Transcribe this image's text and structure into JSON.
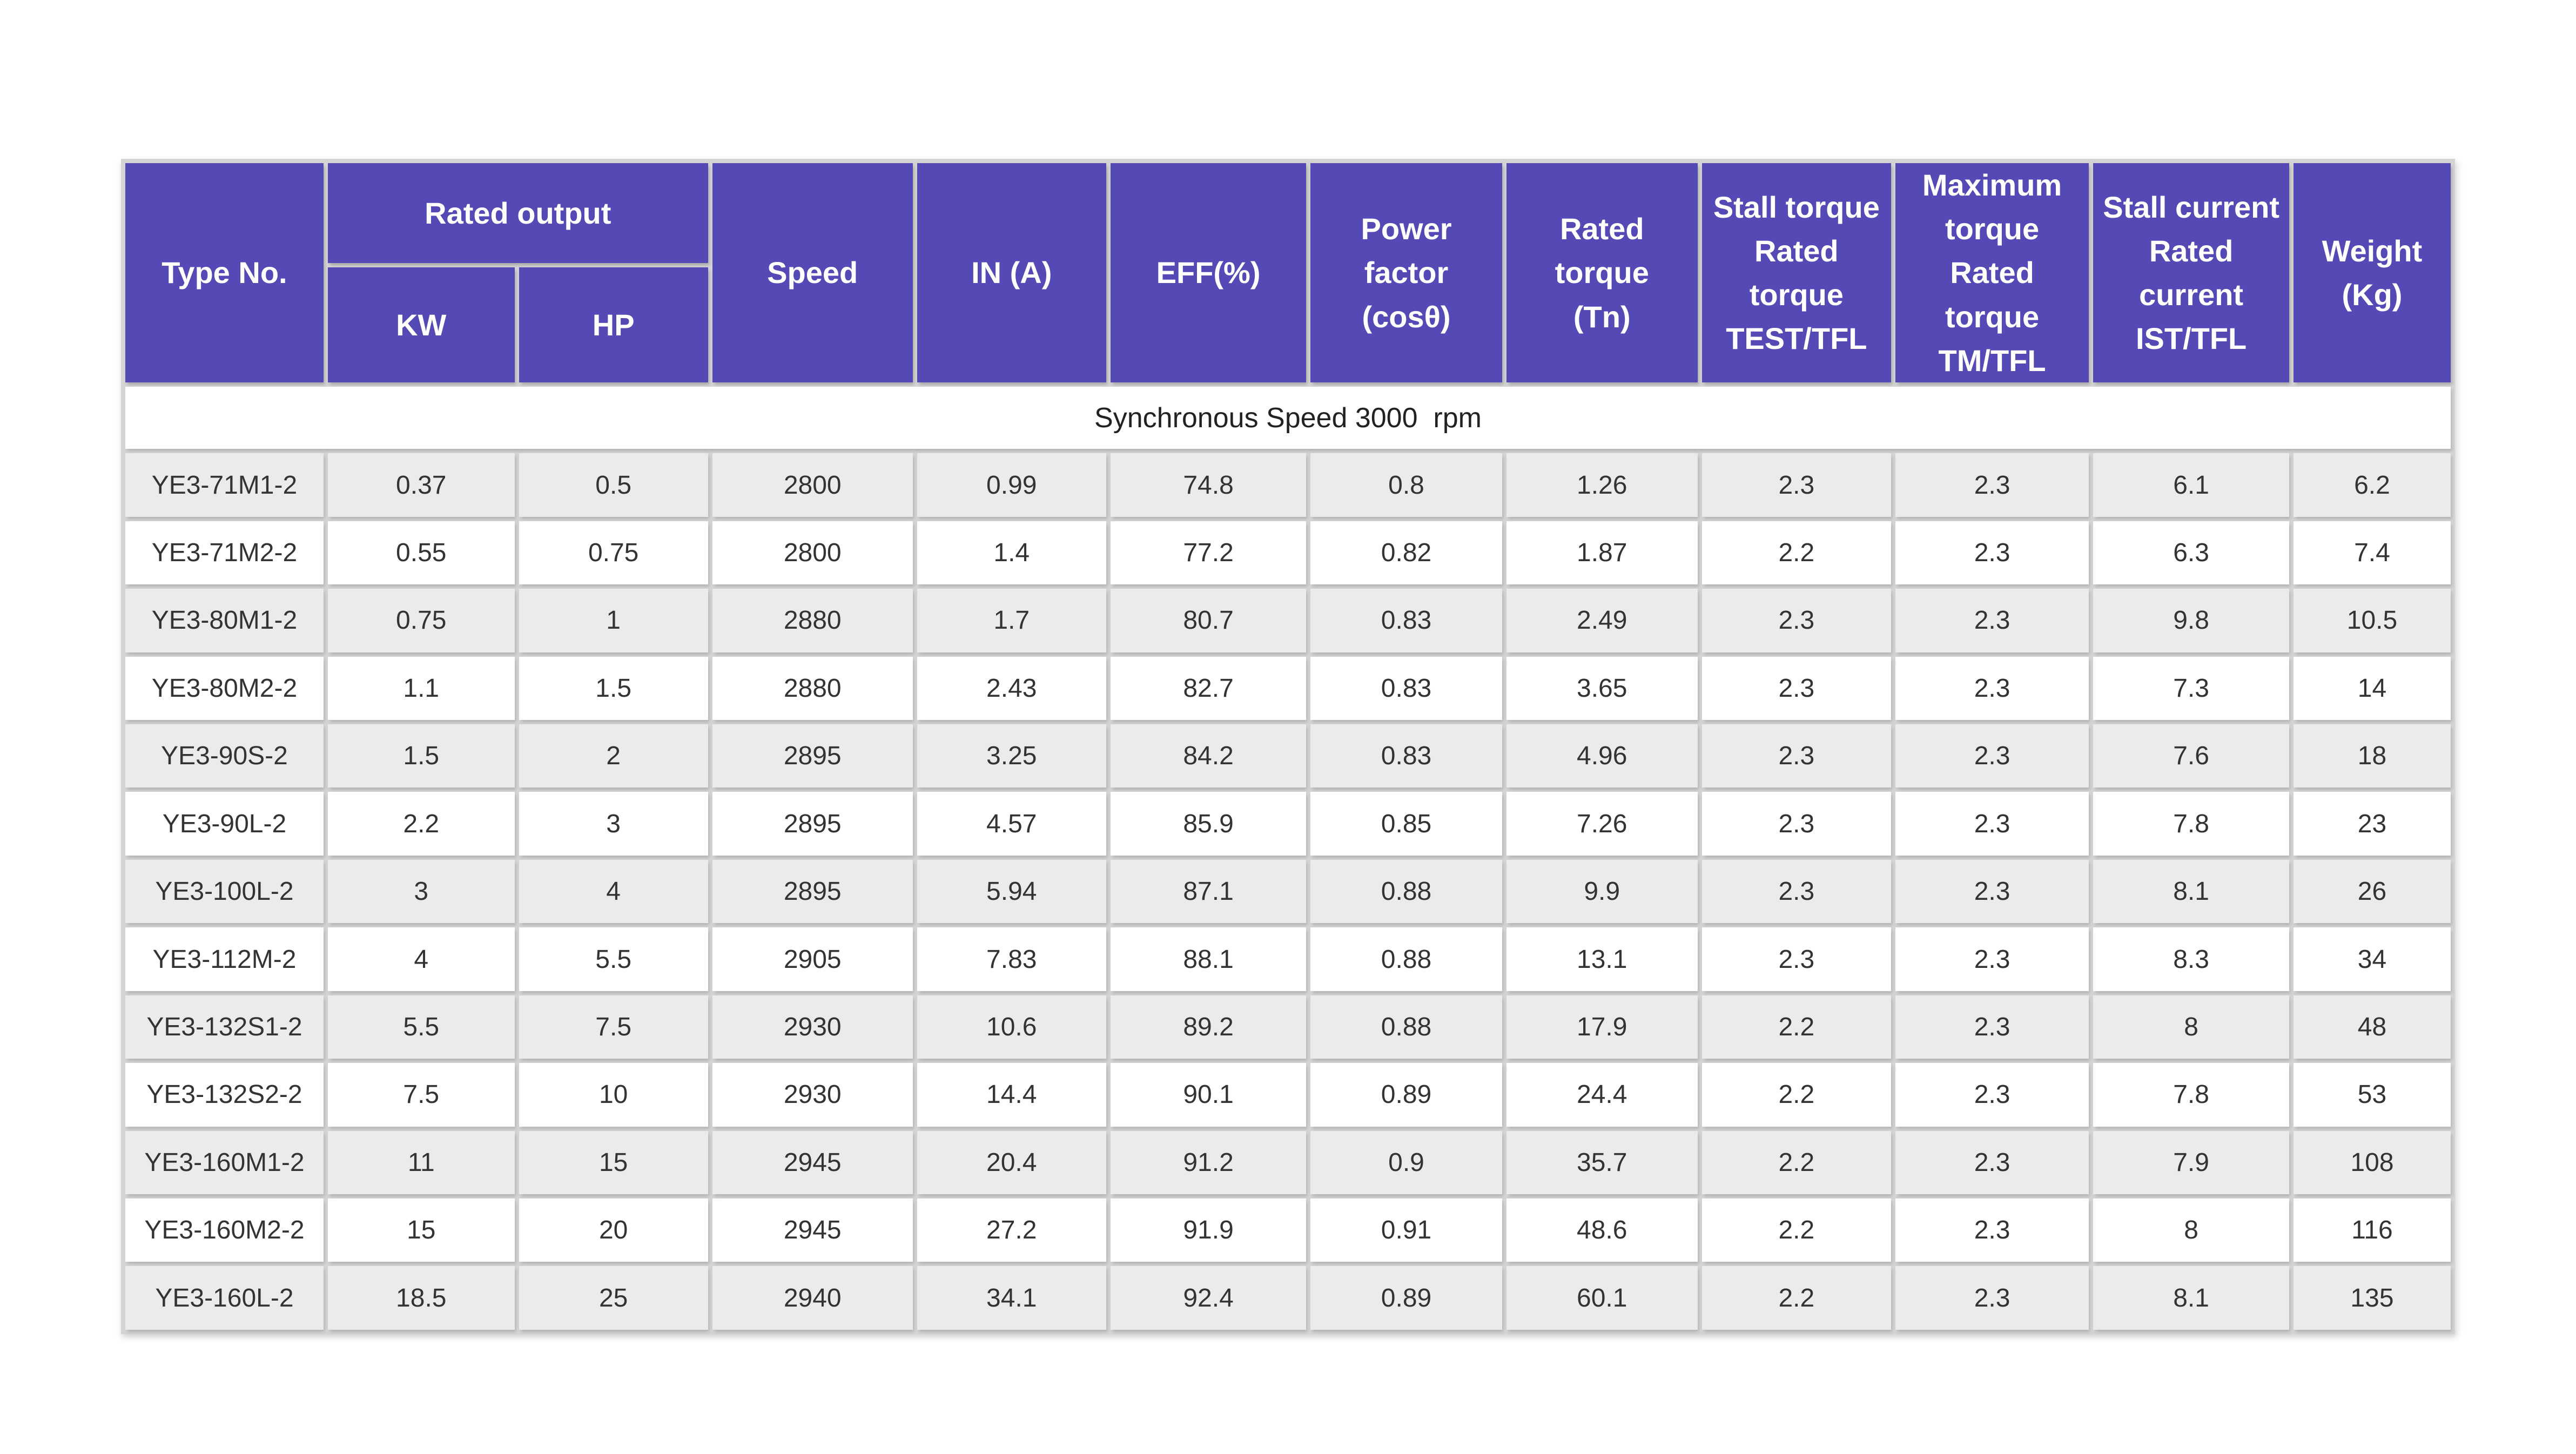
{
  "page": {
    "background_color": "#ffffff"
  },
  "table": {
    "accent_color": "#5449b5",
    "grid_color": "#d4d4d5",
    "stripe_color": "#ebebeb",
    "header_text_color": "#ffffff",
    "body_text_color": "#333333",
    "header": {
      "type_no": "Type No.",
      "rated_output": "Rated output",
      "kw": "KW",
      "hp": "HP",
      "speed": "Speed",
      "in_a": "IN (A)",
      "eff": "EFF(%)",
      "power_factor": "Power factor\n(cosθ)",
      "rated_torque": "Rated torque\n(Tn)",
      "stall_torque": "Stall torque\nRated torque\nTEST/TFL",
      "max_torque": "Maximum\ntorque\nRated torque\nTM/TFL",
      "stall_current": "Stall current\nRated current\nIST/TFL",
      "weight": "Weight\n(Kg)"
    },
    "section_title": "Synchronous Speed 3000  rpm",
    "rows": [
      [
        "YE3-71M1-2",
        "0.37",
        "0.5",
        "2800",
        "0.99",
        "74.8",
        "0.8",
        "1.26",
        "2.3",
        "2.3",
        "6.1",
        "6.2"
      ],
      [
        "YE3-71M2-2",
        "0.55",
        "0.75",
        "2800",
        "1.4",
        "77.2",
        "0.82",
        "1.87",
        "2.2",
        "2.3",
        "6.3",
        "7.4"
      ],
      [
        "YE3-80M1-2",
        "0.75",
        "1",
        "2880",
        "1.7",
        "80.7",
        "0.83",
        "2.49",
        "2.3",
        "2.3",
        "9.8",
        "10.5"
      ],
      [
        "YE3-80M2-2",
        "1.1",
        "1.5",
        "2880",
        "2.43",
        "82.7",
        "0.83",
        "3.65",
        "2.3",
        "2.3",
        "7.3",
        "14"
      ],
      [
        "YE3-90S-2",
        "1.5",
        "2",
        "2895",
        "3.25",
        "84.2",
        "0.83",
        "4.96",
        "2.3",
        "2.3",
        "7.6",
        "18"
      ],
      [
        "YE3-90L-2",
        "2.2",
        "3",
        "2895",
        "4.57",
        "85.9",
        "0.85",
        "7.26",
        "2.3",
        "2.3",
        "7.8",
        "23"
      ],
      [
        "YE3-100L-2",
        "3",
        "4",
        "2895",
        "5.94",
        "87.1",
        "0.88",
        "9.9",
        "2.3",
        "2.3",
        "8.1",
        "26"
      ],
      [
        "YE3-112M-2",
        "4",
        "5.5",
        "2905",
        "7.83",
        "88.1",
        "0.88",
        "13.1",
        "2.3",
        "2.3",
        "8.3",
        "34"
      ],
      [
        "YE3-132S1-2",
        "5.5",
        "7.5",
        "2930",
        "10.6",
        "89.2",
        "0.88",
        "17.9",
        "2.2",
        "2.3",
        "8",
        "48"
      ],
      [
        "YE3-132S2-2",
        "7.5",
        "10",
        "2930",
        "14.4",
        "90.1",
        "0.89",
        "24.4",
        "2.2",
        "2.3",
        "7.8",
        "53"
      ],
      [
        "YE3-160M1-2",
        "11",
        "15",
        "2945",
        "20.4",
        "91.2",
        "0.9",
        "35.7",
        "2.2",
        "2.3",
        "7.9",
        "108"
      ],
      [
        "YE3-160M2-2",
        "15",
        "20",
        "2945",
        "27.2",
        "91.9",
        "0.91",
        "48.6",
        "2.2",
        "2.3",
        "8",
        "116"
      ],
      [
        "YE3-160L-2",
        "18.5",
        "25",
        "2940",
        "34.1",
        "92.4",
        "0.89",
        "60.1",
        "2.2",
        "2.3",
        "8.1",
        "135"
      ]
    ]
  }
}
